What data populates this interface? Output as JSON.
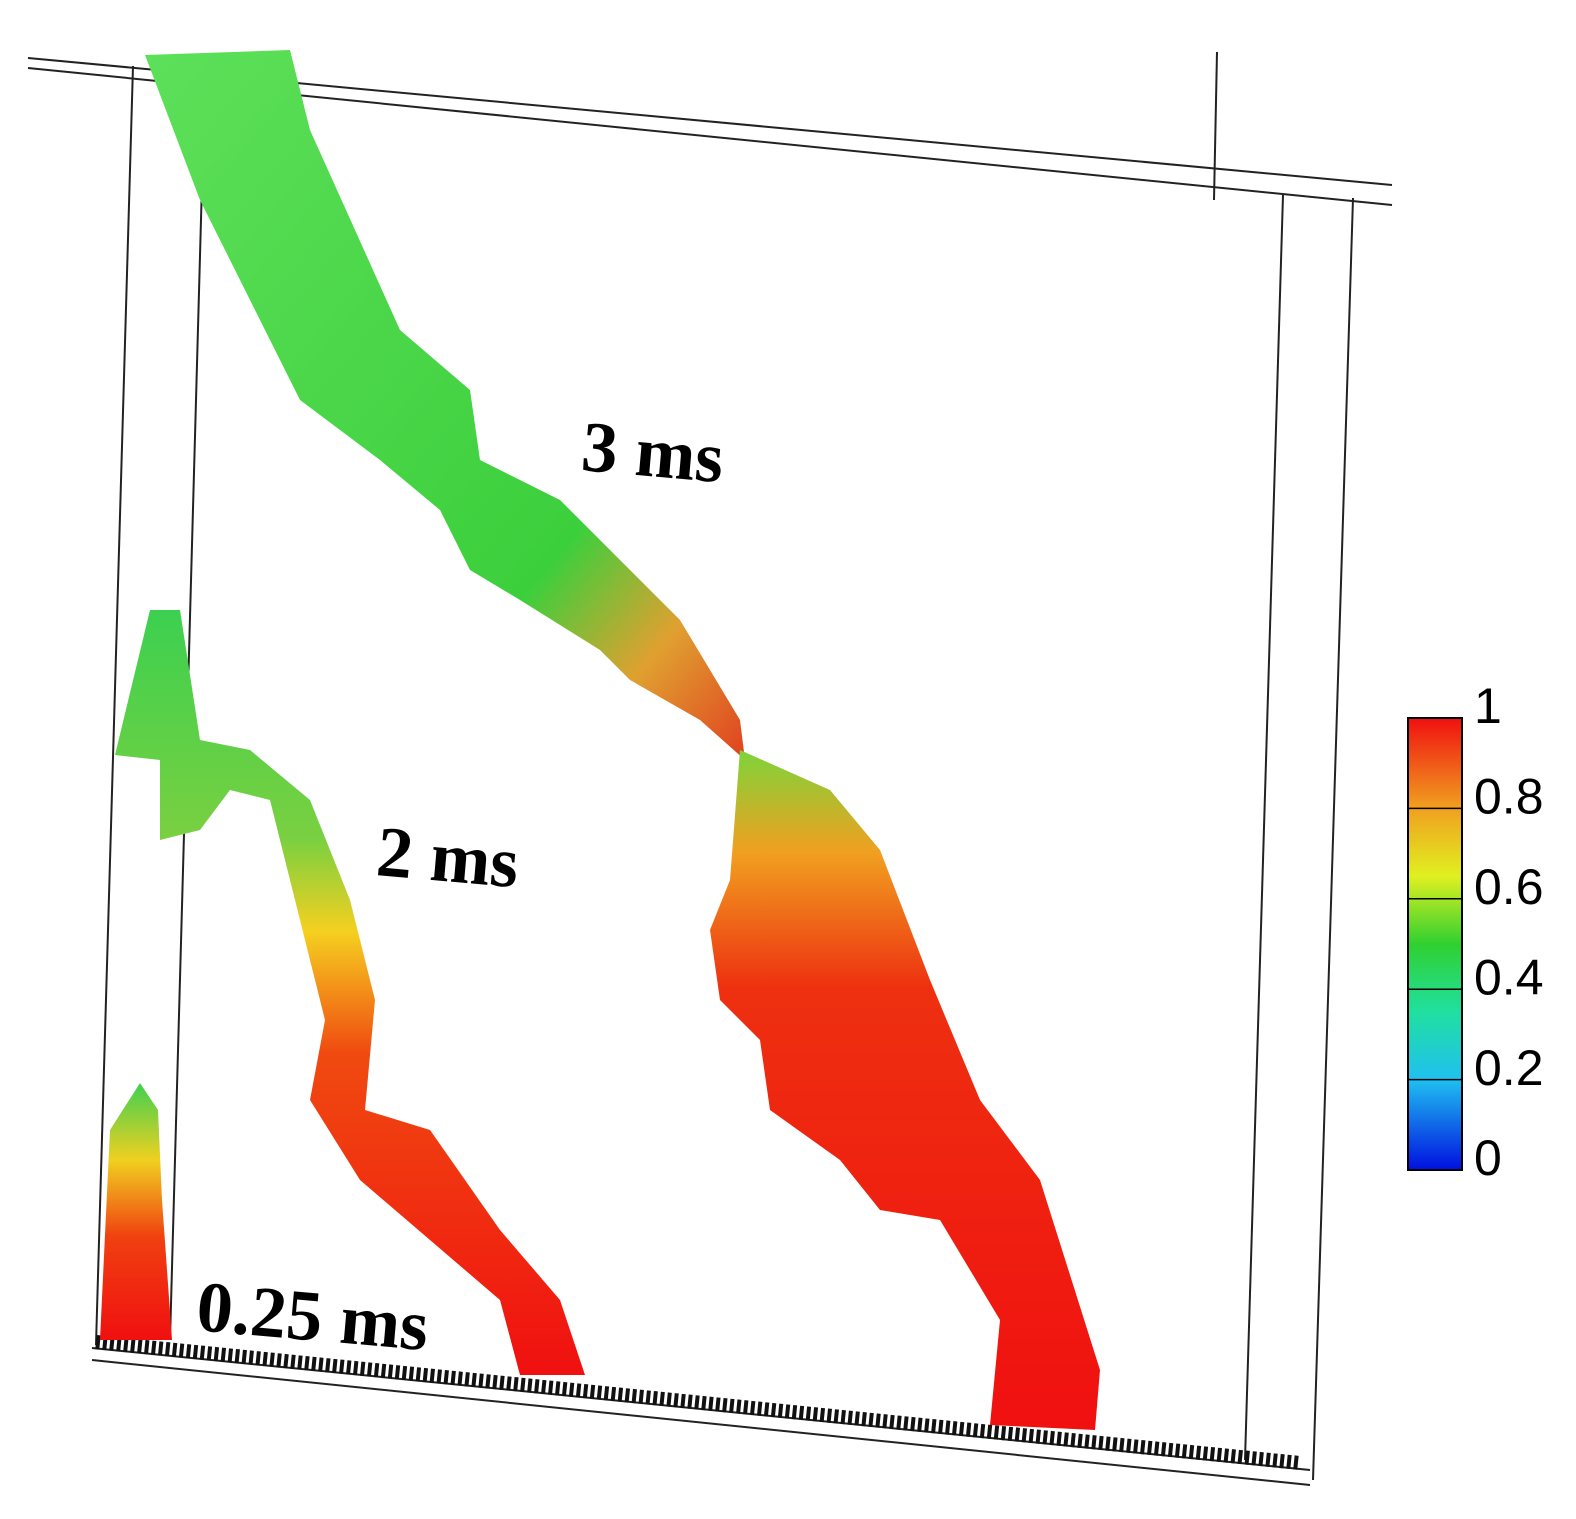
{
  "labels": [
    "3 ms",
    "2 ms",
    "0.25 ms"
  ],
  "colorbar": {
    "range": [
      0,
      1
    ],
    "ticks": [
      0,
      0.2,
      0.4,
      0.6,
      0.8,
      1
    ]
  }
}
